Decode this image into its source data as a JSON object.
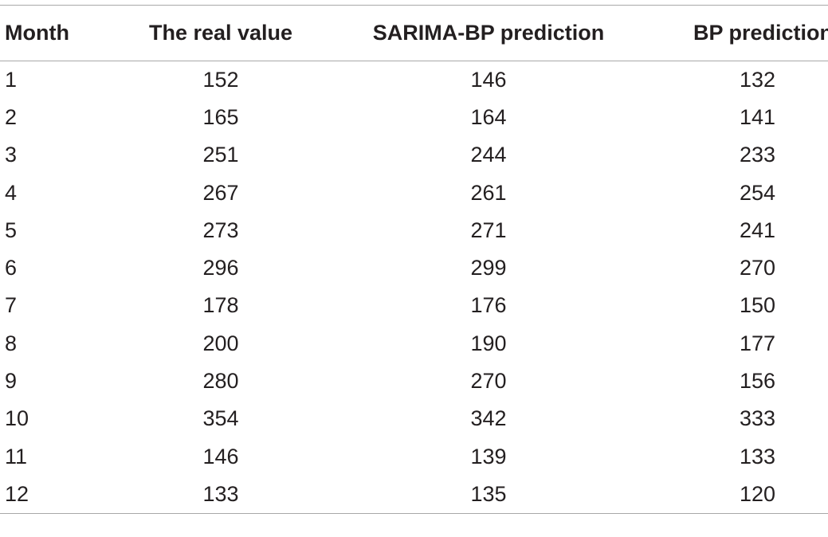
{
  "table": {
    "headers": {
      "month": "Month",
      "real": "The real value",
      "sarima_bp": "SARIMA-BP prediction",
      "bp": "BP prediction"
    },
    "rows": [
      {
        "month": "1",
        "real": "152",
        "sarima_bp": "146",
        "bp": "132"
      },
      {
        "month": "2",
        "real": "165",
        "sarima_bp": "164",
        "bp": "141"
      },
      {
        "month": "3",
        "real": "251",
        "sarima_bp": "244",
        "bp": "233"
      },
      {
        "month": "4",
        "real": "267",
        "sarima_bp": "261",
        "bp": "254"
      },
      {
        "month": "5",
        "real": "273",
        "sarima_bp": "271",
        "bp": "241"
      },
      {
        "month": "6",
        "real": "296",
        "sarima_bp": "299",
        "bp": "270"
      },
      {
        "month": "7",
        "real": "178",
        "sarima_bp": "176",
        "bp": "150"
      },
      {
        "month": "8",
        "real": "200",
        "sarima_bp": "190",
        "bp": "177"
      },
      {
        "month": "9",
        "real": "280",
        "sarima_bp": "270",
        "bp": "156"
      },
      {
        "month": "10",
        "real": "354",
        "sarima_bp": "342",
        "bp": "333"
      },
      {
        "month": "11",
        "real": "146",
        "sarima_bp": "139",
        "bp": "133"
      },
      {
        "month": "12",
        "real": "133",
        "sarima_bp": "135",
        "bp": "120"
      }
    ]
  }
}
